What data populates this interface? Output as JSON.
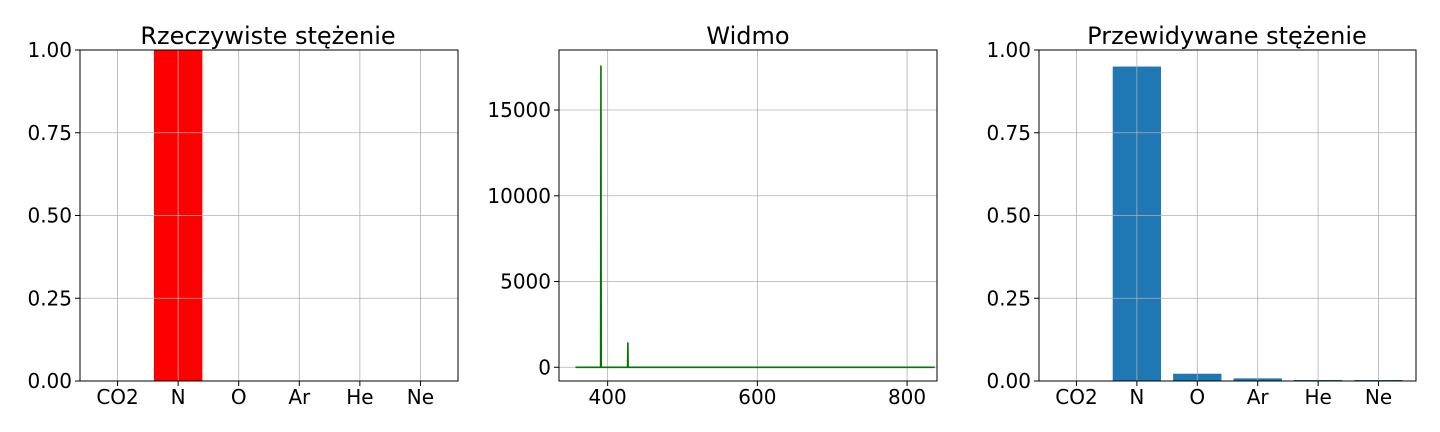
{
  "chart_data": [
    {
      "type": "bar",
      "title": "Rzeczywiste stężenie",
      "categories": [
        "CO2",
        "N",
        "O",
        "Ar",
        "He",
        "Ne"
      ],
      "values": [
        0,
        1.0,
        0,
        0,
        0,
        0
      ],
      "color": "#ff0000",
      "ylim": [
        0,
        1.0
      ],
      "yticks": [
        "0.00",
        "0.25",
        "0.50",
        "0.75",
        "1.00"
      ],
      "grid": true
    },
    {
      "type": "line",
      "title": "Widmo",
      "color": "#007800",
      "xlim": [
        335,
        840
      ],
      "ylim": [
        -800,
        18500
      ],
      "xticks": [
        "400",
        "600",
        "800"
      ],
      "yticks": [
        "0",
        "5000",
        "10000",
        "15000"
      ],
      "baseline": {
        "x_start": 357,
        "x_end": 837,
        "y": 0
      },
      "peaks": [
        {
          "x": 391,
          "y": 17600
        },
        {
          "x": 427,
          "y": 1450
        }
      ],
      "grid": true
    },
    {
      "type": "bar",
      "title": "Przewidywane stężenie",
      "categories": [
        "CO2",
        "N",
        "O",
        "Ar",
        "He",
        "Ne"
      ],
      "values": [
        0.0,
        0.95,
        0.022,
        0.008,
        0.003,
        0.003
      ],
      "color": "#1f77b4",
      "ylim": [
        0,
        1.0
      ],
      "yticks": [
        "0.00",
        "0.25",
        "0.50",
        "0.75",
        "1.00"
      ],
      "grid": true
    }
  ]
}
